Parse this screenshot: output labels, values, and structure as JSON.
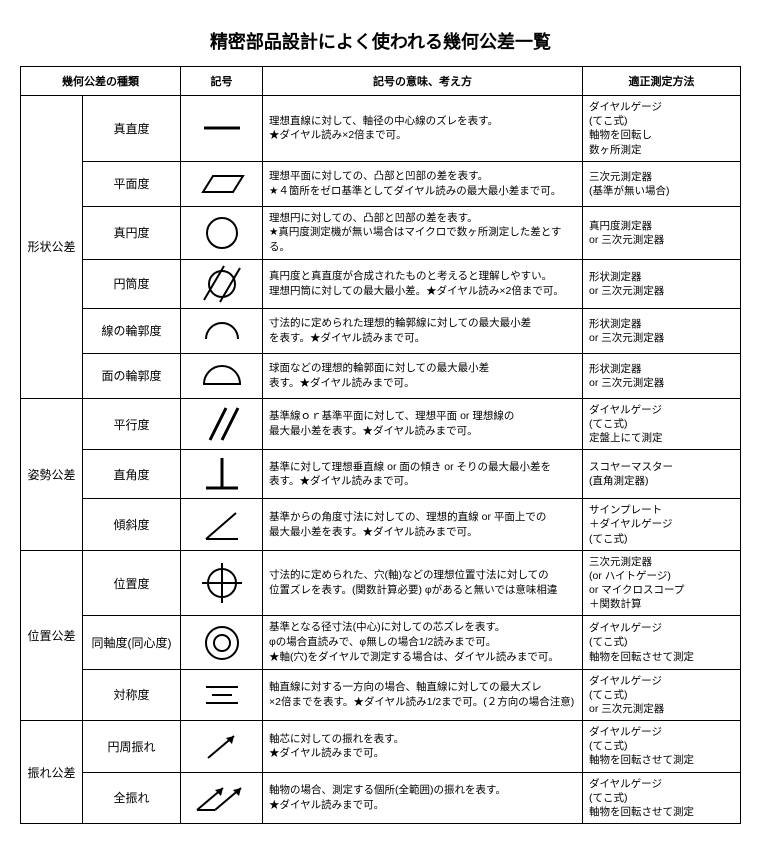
{
  "title": "精密部品設計によく使われる幾何公差一覧",
  "headers": {
    "c0": "幾何公差の種類",
    "c1": "記号",
    "c2": "記号の意味、考え方",
    "c3": "適正測定方法"
  },
  "stroke": "#000000",
  "sw": 2,
  "categories": [
    {
      "label": "形状公差",
      "span": 6
    },
    {
      "label": "姿勢公差",
      "span": 3
    },
    {
      "label": "位置公差",
      "span": 3
    },
    {
      "label": "振れ公差",
      "span": 2
    }
  ],
  "rows": [
    {
      "name": "真直度",
      "symbol": "straightness",
      "meaning": "理想直線に対して、軸径の中心線のズレを表す。\n★ダイヤル読み×2倍まで可。",
      "measure": "ダイヤルゲージ\n(てこ式)\n軸物を回転し\n数ヶ所測定"
    },
    {
      "name": "平面度",
      "symbol": "flatness",
      "meaning": "理想平面に対しての、凸部と凹部の差を表す。\n★４箇所をゼロ基準としてダイヤル読みの最大最小差まで可。",
      "measure": "三次元測定器\n(基準が無い場合)"
    },
    {
      "name": "真円度",
      "symbol": "roundness",
      "meaning": "理想円に対しての、凸部と凹部の差を表す。\n★真円度測定機が無い場合はマイクロで数ヶ所測定した差とする。",
      "measure": "真円度測定器\n or 三次元測定器"
    },
    {
      "name": "円筒度",
      "symbol": "cylindricity",
      "meaning": "真円度と真直度が合成されたものと考えると理解しやすい。\n理想円筒に対しての最大最小差。★ダイヤル読み×2倍まで可。",
      "measure": "形状測定器\n or 三次元測定器"
    },
    {
      "name": "線の輪郭度",
      "symbol": "line_profile",
      "meaning": "寸法的に定められた理想的輪郭線に対しての最大最小差\nを表す。★ダイヤル読みまで可。",
      "measure": "形状測定器\n or 三次元測定器"
    },
    {
      "name": "面の輪郭度",
      "symbol": "surface_profile",
      "meaning": "球面などの理想的輪郭面に対しての最大最小差\n表す。★ダイヤル読みまで可。",
      "measure": "形状測定器\n or 三次元測定器"
    },
    {
      "name": "平行度",
      "symbol": "parallelism",
      "meaning": "基準線ｏｒ基準平面に対して、理想平面 or 理想線の\n最大最小差を表す。★ダイヤル読みまで可。",
      "measure": "ダイヤルゲージ\n(てこ式)\n定盤上にて測定"
    },
    {
      "name": "直角度",
      "symbol": "perpendicularity",
      "meaning": "基準に対して理想垂直線 or 面の傾き or そりの最大最小差を\n表す。★ダイヤル読みまで可。",
      "measure": "スコヤーマスター\n(直角測定器)"
    },
    {
      "name": "傾斜度",
      "symbol": "angularity",
      "meaning": "基準からの角度寸法に対しての、理想的直線 or 平面上での\n最大最小差を表す。★ダイヤル読みまで可。",
      "measure": "サインプレート\n＋ダイヤルゲージ\n(てこ式)"
    },
    {
      "name": "位置度",
      "symbol": "position",
      "meaning": "寸法的に定められた、穴(軸)などの理想位置寸法に対しての\n位置ズレを表す。(関数計算必要) φがあると無いでは意味相違",
      "measure": "三次元測定器\n(or ハイトゲージ)\nor マイクロスコープ\n＋関数計算"
    },
    {
      "name": "同軸度(同心度)",
      "symbol": "concentricity",
      "meaning": "基準となる径寸法(中心)に対しての芯ズレを表す。\nφの場合直読みで、φ無しの場合1/2読みまで可。\n★軸(穴)をダイヤルで測定する場合は、ダイヤル読みまで可。",
      "measure": "ダイヤルゲージ\n(てこ式)\n軸物を回転させて測定"
    },
    {
      "name": "対称度",
      "symbol": "symmetry",
      "meaning": "軸直線に対する一方向の場合、軸直線に対しての最大ズレ\n×2倍までを表す。★ダイヤル読み1/2まで可。(２方向の場合注意)",
      "measure": "ダイヤルゲージ\n(てこ式)\n or 三次元測定器"
    },
    {
      "name": "円周振れ",
      "symbol": "circular_runout",
      "meaning": "軸芯に対しての振れを表す。\n★ダイヤル読みまで可。",
      "measure": "ダイヤルゲージ\n(てこ式)\n軸物を回転させて測定"
    },
    {
      "name": "全振れ",
      "symbol": "total_runout",
      "meaning": "軸物の場合、測定する個所(全範囲)の振れを表す。\n★ダイヤル読みまで可。",
      "measure": "ダイヤルゲージ\n(てこ式)\n軸物を回転させて測定"
    }
  ]
}
